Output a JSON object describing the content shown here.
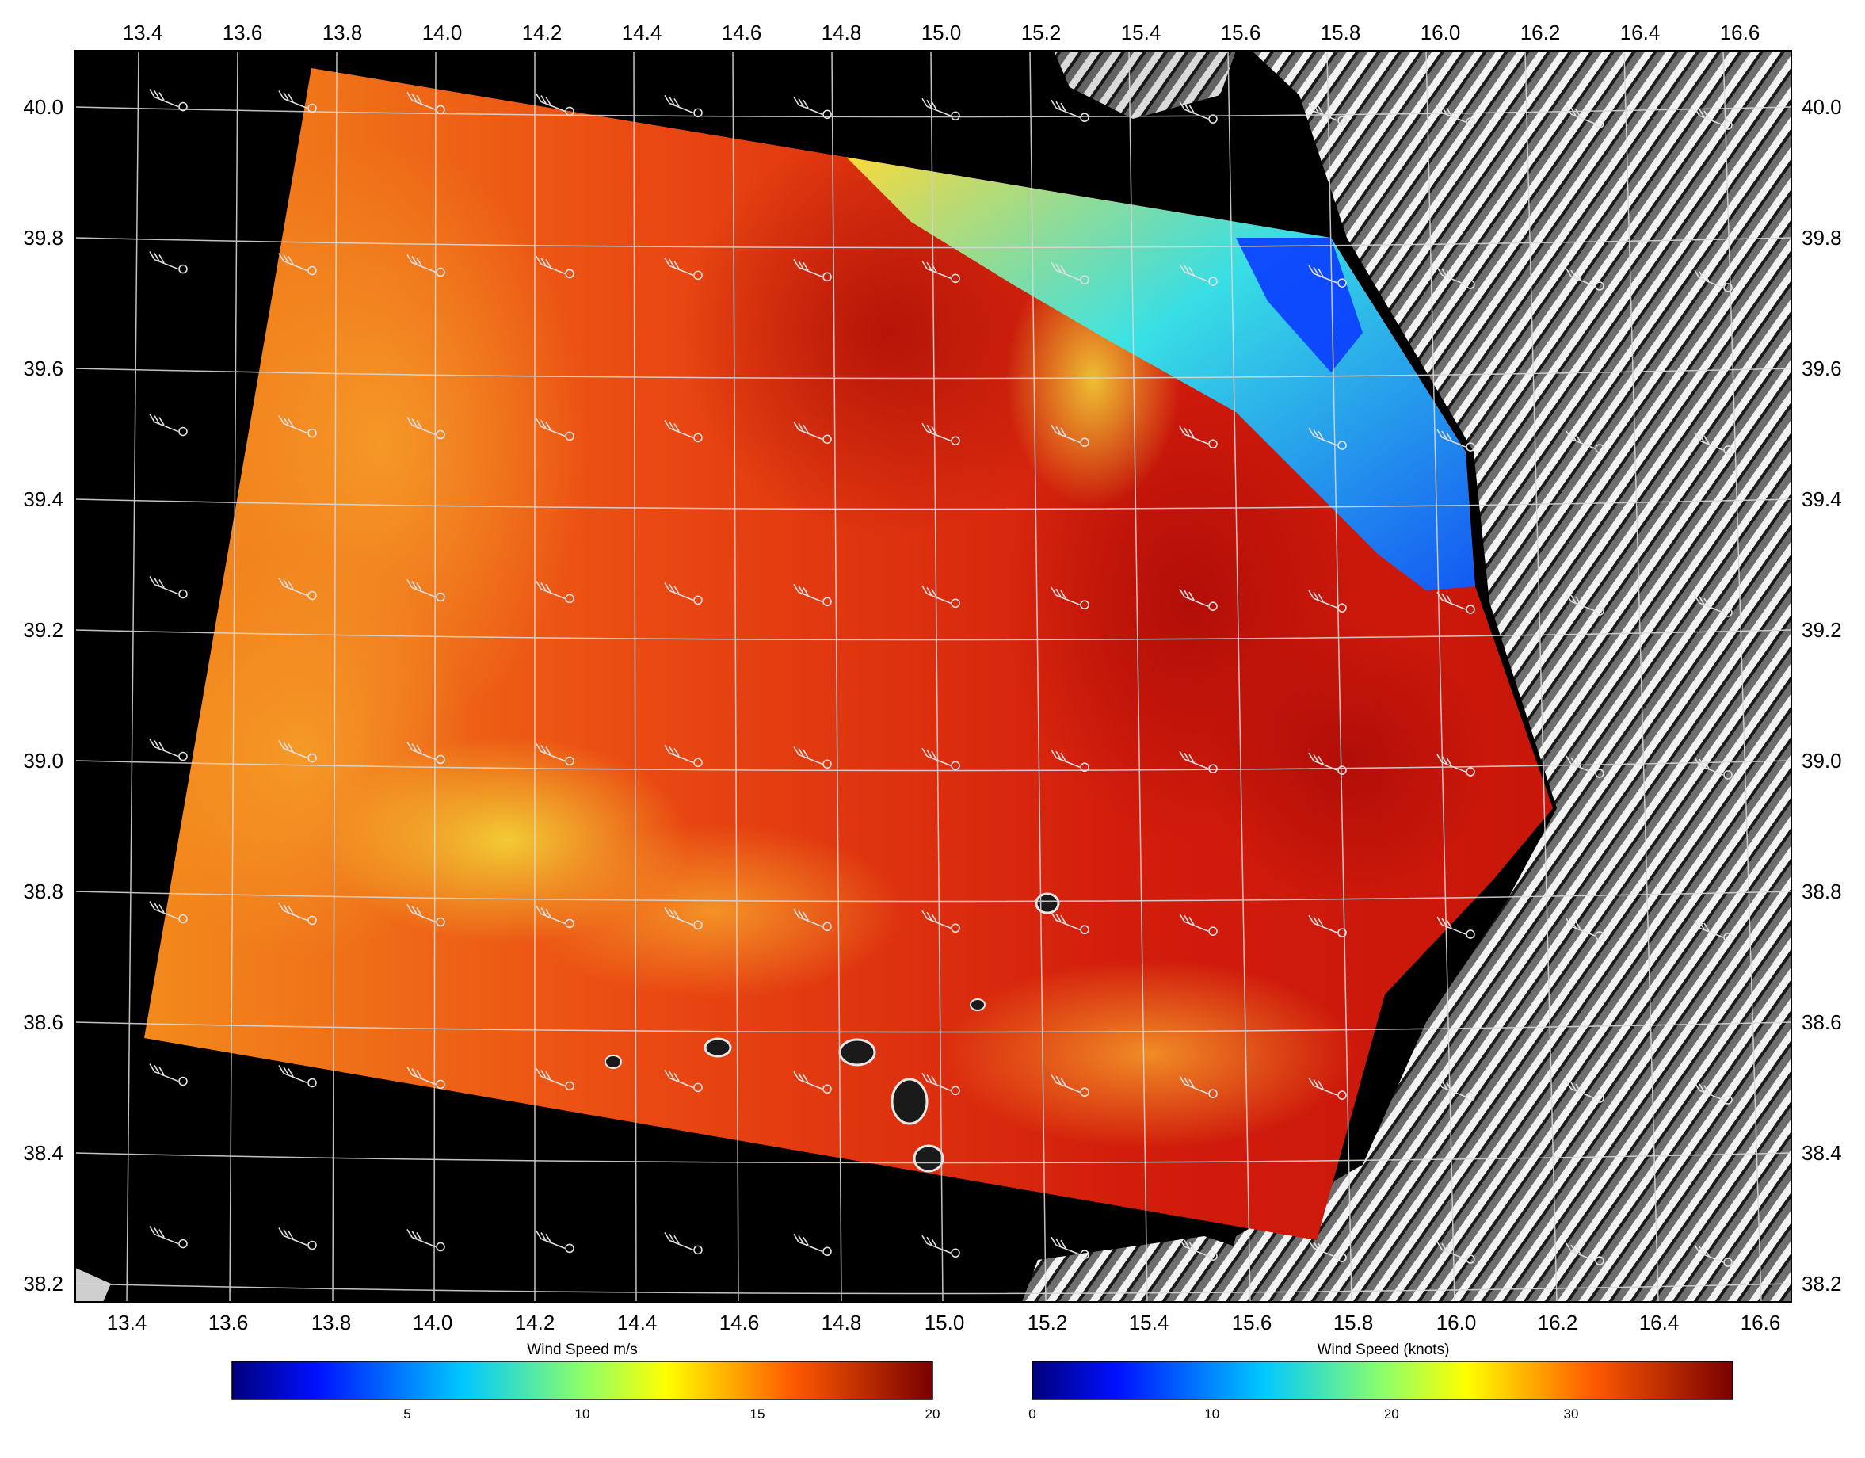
{
  "map": {
    "top_lon_labels": [
      "13.4",
      "13.6",
      "13.8",
      "14.0",
      "14.2",
      "14.4",
      "14.6",
      "14.8",
      "15.0",
      "15.2",
      "15.4",
      "15.6",
      "15.8",
      "16.0",
      "16.2",
      "16.4",
      "16.6"
    ],
    "bottom_lon_labels": [
      "13.4",
      "13.6",
      "13.8",
      "14.0",
      "14.2",
      "14.4",
      "14.6",
      "14.8",
      "15.0",
      "15.2",
      "15.4",
      "15.6",
      "15.8",
      "16.0",
      "16.2",
      "16.4",
      "16.6"
    ],
    "lat_labels": [
      "40.0",
      "39.8",
      "39.6",
      "39.4",
      "39.2",
      "39.0",
      "38.8",
      "38.6",
      "38.4",
      "38.2"
    ],
    "colors": {
      "background": "#000000",
      "grid": "#d8d8d8",
      "label": "#000000",
      "sar_high_wind": "#d81a0a",
      "sar_moderate_wind": "#f07a18",
      "sar_low_wind": "#18d0f0",
      "land": "#8c8c8c"
    },
    "colorbar_ms": {
      "title": "Wind Speed m/s",
      "ticks": [
        "5",
        "10",
        "15",
        "20"
      ],
      "tick_values": [
        5,
        10,
        15,
        20
      ],
      "range": [
        0,
        20
      ]
    },
    "colorbar_knots": {
      "title": "Wind Speed (knots)",
      "ticks": [
        "0",
        "10",
        "20",
        "30"
      ],
      "tick_values": [
        0,
        10,
        20,
        30
      ],
      "range": [
        0,
        39
      ]
    }
  }
}
